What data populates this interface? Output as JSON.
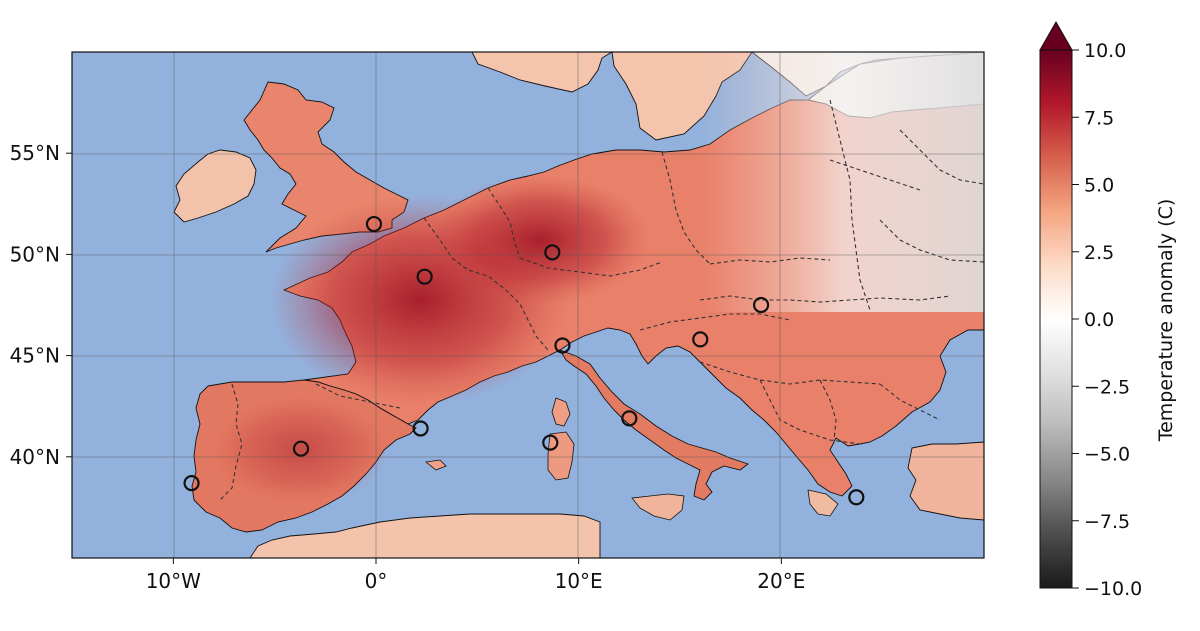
{
  "map": {
    "colors": {
      "ocean": "#93b1dd",
      "coast": "#111111",
      "border": "#333333",
      "gridline": "#555555",
      "marker": "#111111"
    },
    "lon_ticks": [
      {
        "lon": -10,
        "label": "10°W"
      },
      {
        "lon": 0,
        "label": "0°"
      },
      {
        "lon": 10,
        "label": "10°E"
      },
      {
        "lon": 20,
        "label": "20°E"
      }
    ],
    "lat_ticks": [
      {
        "lat": 55,
        "label": "55°N"
      },
      {
        "lat": 50,
        "label": "50°N"
      },
      {
        "lat": 45,
        "label": "45°N"
      },
      {
        "lat": 40,
        "label": "40°N"
      }
    ],
    "markers": [
      {
        "lon": -0.1,
        "lat": 51.5
      },
      {
        "lon": 2.4,
        "lat": 48.9
      },
      {
        "lon": 8.7,
        "lat": 50.1
      },
      {
        "lon": 19.0,
        "lat": 47.5
      },
      {
        "lon": 16.0,
        "lat": 45.8
      },
      {
        "lon": 9.2,
        "lat": 45.5
      },
      {
        "lon": 12.5,
        "lat": 41.9
      },
      {
        "lon": 2.2,
        "lat": 41.4
      },
      {
        "lon": -3.7,
        "lat": 40.4
      },
      {
        "lon": -9.1,
        "lat": 38.7
      },
      {
        "lon": 8.6,
        "lat": 40.7
      },
      {
        "lon": 23.7,
        "lat": 38.0
      }
    ]
  },
  "colorbar": {
    "label": "Temperature anomaly (C)",
    "ticks": [
      "10.0",
      "7.5",
      "5.0",
      "2.5",
      "0.0",
      "−2.5",
      "−5.0",
      "−7.5",
      "−10.0"
    ],
    "tick_values": [
      10,
      7.5,
      5,
      2.5,
      0,
      -2.5,
      -5,
      -7.5,
      -10
    ],
    "stops": [
      "#67001f",
      "#b2182b",
      "#d6604d",
      "#f4a582",
      "#fddbc7",
      "#ffffff",
      "#e0e0e0",
      "#bababa",
      "#878787",
      "#4d4d4d",
      "#1a1a1a"
    ]
  }
}
